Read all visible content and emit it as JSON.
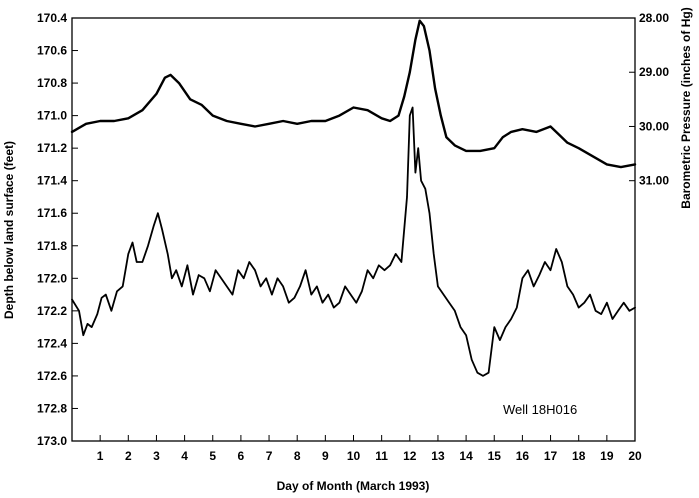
{
  "chart_data": {
    "type": "line",
    "xlabel": "Day of Month (March 1993)",
    "ylabel_left": "Depth below land surface (feet)",
    "ylabel_right": "Barometric Pressure (inches of Hg)",
    "annotation": "Well 18H016",
    "xlim": [
      0,
      20
    ],
    "ylim_left": [
      170.4,
      173.0
    ],
    "ylim_right": [
      28.0,
      35.8
    ],
    "left_inverted": true,
    "right_inverted": true,
    "grid": false,
    "x_ticks": [
      "1",
      "2",
      "3",
      "4",
      "5",
      "6",
      "7",
      "8",
      "9",
      "10",
      "11",
      "12",
      "13",
      "14",
      "15",
      "16",
      "17",
      "18",
      "19",
      "20"
    ],
    "y_left_ticks": [
      "170.4",
      "170.6",
      "170.8",
      "171.0",
      "171.2",
      "171.4",
      "171.6",
      "171.8",
      "172.0",
      "172.2",
      "172.4",
      "172.6",
      "172.8",
      "173.0"
    ],
    "y_right_ticks": [
      "28.00",
      "29.00",
      "30.00",
      "31.00"
    ],
    "series": [
      {
        "axis": "left",
        "x": [
          0.0,
          0.25,
          0.4,
          0.55,
          0.7,
          0.9,
          1.05,
          1.2,
          1.4,
          1.6,
          1.8,
          2.0,
          2.15,
          2.3,
          2.5,
          2.7,
          2.9,
          3.05,
          3.2,
          3.4,
          3.55,
          3.7,
          3.9,
          4.1,
          4.3,
          4.5,
          4.7,
          4.9,
          5.1,
          5.3,
          5.5,
          5.7,
          5.9,
          6.1,
          6.3,
          6.5,
          6.7,
          6.9,
          7.1,
          7.3,
          7.5,
          7.7,
          7.9,
          8.1,
          8.3,
          8.5,
          8.7,
          8.9,
          9.1,
          9.3,
          9.5,
          9.7,
          9.9,
          10.1,
          10.3,
          10.5,
          10.7,
          10.9,
          11.1,
          11.3,
          11.5,
          11.7,
          11.9,
          12.0,
          12.1,
          12.2,
          12.3,
          12.4,
          12.55,
          12.7,
          12.85,
          13.0,
          13.2,
          13.4,
          13.6,
          13.8,
          14.0,
          14.2,
          14.4,
          14.6,
          14.8,
          15.0,
          15.2,
          15.4,
          15.6,
          15.8,
          16.0,
          16.2,
          16.4,
          16.6,
          16.8,
          17.0,
          17.2,
          17.4,
          17.6,
          17.8,
          18.0,
          18.2,
          18.4,
          18.6,
          18.8,
          19.0,
          19.2,
          19.4,
          19.6,
          19.8,
          20.0
        ],
        "values": [
          172.13,
          172.2,
          172.35,
          172.28,
          172.3,
          172.22,
          172.12,
          172.1,
          172.2,
          172.08,
          172.05,
          171.85,
          171.78,
          171.9,
          171.9,
          171.8,
          171.68,
          171.6,
          171.7,
          171.85,
          172.0,
          171.95,
          172.05,
          171.92,
          172.1,
          171.98,
          172.0,
          172.08,
          171.95,
          172.0,
          172.05,
          172.1,
          171.95,
          172.0,
          171.9,
          171.95,
          172.05,
          172.0,
          172.1,
          172.0,
          172.05,
          172.15,
          172.12,
          172.05,
          171.95,
          172.1,
          172.05,
          172.15,
          172.1,
          172.18,
          172.15,
          172.05,
          172.1,
          172.15,
          172.08,
          171.95,
          172.0,
          171.92,
          171.95,
          171.92,
          171.85,
          171.9,
          171.5,
          171.0,
          170.95,
          171.35,
          171.2,
          171.4,
          171.45,
          171.6,
          171.85,
          172.05,
          172.1,
          172.15,
          172.2,
          172.3,
          172.35,
          172.5,
          172.58,
          172.6,
          172.58,
          172.3,
          172.38,
          172.3,
          172.25,
          172.18,
          172.0,
          171.95,
          172.05,
          171.98,
          171.9,
          171.95,
          171.82,
          171.9,
          172.05,
          172.1,
          172.18,
          172.15,
          172.1,
          172.2,
          172.22,
          172.15,
          172.25,
          172.2,
          172.15,
          172.2,
          172.18
        ]
      },
      {
        "axis": "right",
        "x": [
          0.0,
          0.5,
          1.0,
          1.5,
          2.0,
          2.5,
          3.0,
          3.3,
          3.5,
          3.8,
          4.2,
          4.6,
          5.0,
          5.5,
          6.0,
          6.5,
          7.0,
          7.5,
          8.0,
          8.5,
          9.0,
          9.5,
          10.0,
          10.5,
          11.0,
          11.3,
          11.6,
          11.8,
          12.0,
          12.2,
          12.35,
          12.5,
          12.7,
          12.9,
          13.1,
          13.3,
          13.6,
          14.0,
          14.5,
          15.0,
          15.3,
          15.6,
          16.0,
          16.5,
          17.0,
          17.3,
          17.6,
          18.0,
          18.5,
          19.0,
          19.5,
          20.0
        ],
        "values": [
          30.1,
          29.95,
          29.9,
          29.9,
          29.85,
          29.7,
          29.4,
          29.1,
          29.05,
          29.2,
          29.5,
          29.6,
          29.8,
          29.9,
          29.95,
          30.0,
          29.95,
          29.9,
          29.95,
          29.9,
          29.9,
          29.8,
          29.65,
          29.7,
          29.85,
          29.9,
          29.8,
          29.45,
          29.0,
          28.4,
          28.05,
          28.15,
          28.6,
          29.3,
          29.8,
          30.2,
          30.35,
          30.45,
          30.45,
          30.4,
          30.2,
          30.1,
          30.05,
          30.1,
          30.0,
          30.15,
          30.3,
          30.4,
          30.55,
          30.7,
          30.75,
          30.7
        ]
      }
    ]
  }
}
